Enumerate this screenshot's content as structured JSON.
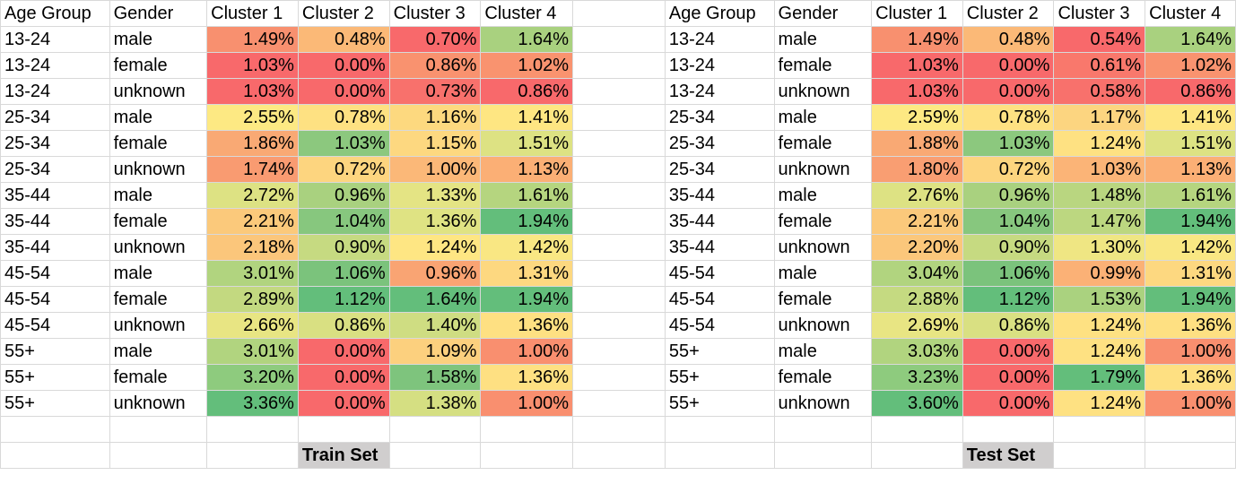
{
  "header": [
    "Age Group",
    "Gender",
    "Cluster 1",
    "Cluster 2",
    "Cluster 3",
    "Cluster 4",
    "",
    "Age Group",
    "Gender",
    "Cluster 1",
    "Cluster 2",
    "Cluster 3",
    "Cluster 4"
  ],
  "rows": [
    [
      {
        "t": "13-24"
      },
      {
        "t": "male"
      },
      {
        "t": "1.49%",
        "bg": "#f8906f"
      },
      {
        "t": "0.48%",
        "bg": "#fbb977"
      },
      {
        "t": "0.70%",
        "bg": "#f8696b"
      },
      {
        "t": "1.64%",
        "bg": "#a9d17f"
      },
      {
        "t": ""
      },
      {
        "t": "13-24"
      },
      {
        "t": "male"
      },
      {
        "t": "1.49%",
        "bg": "#f8906f"
      },
      {
        "t": "0.48%",
        "bg": "#fbb977"
      },
      {
        "t": "0.54%",
        "bg": "#f8696b"
      },
      {
        "t": "1.64%",
        "bg": "#a9d17f"
      }
    ],
    [
      {
        "t": "13-24"
      },
      {
        "t": "female"
      },
      {
        "t": "1.03%",
        "bg": "#f8696b"
      },
      {
        "t": "0.00%",
        "bg": "#f8696b"
      },
      {
        "t": "0.86%",
        "bg": "#f9926f"
      },
      {
        "t": "1.02%",
        "bg": "#f9936f"
      },
      {
        "t": ""
      },
      {
        "t": "13-24"
      },
      {
        "t": "female"
      },
      {
        "t": "1.03%",
        "bg": "#f8696b"
      },
      {
        "t": "0.00%",
        "bg": "#f8696b"
      },
      {
        "t": "0.61%",
        "bg": "#f9786c"
      },
      {
        "t": "1.02%",
        "bg": "#f9936f"
      }
    ],
    [
      {
        "t": "13-24"
      },
      {
        "t": "unknown"
      },
      {
        "t": "1.03%",
        "bg": "#f8696b"
      },
      {
        "t": "0.00%",
        "bg": "#f8696b"
      },
      {
        "t": "0.73%",
        "bg": "#f8716c"
      },
      {
        "t": "0.86%",
        "bg": "#f8696b"
      },
      {
        "t": ""
      },
      {
        "t": "13-24"
      },
      {
        "t": "unknown"
      },
      {
        "t": "1.03%",
        "bg": "#f8696b"
      },
      {
        "t": "0.00%",
        "bg": "#f8696b"
      },
      {
        "t": "0.58%",
        "bg": "#f8716c"
      },
      {
        "t": "0.86%",
        "bg": "#f8696b"
      }
    ],
    [
      {
        "t": "25-34"
      },
      {
        "t": "male"
      },
      {
        "t": "2.55%",
        "bg": "#fde983"
      },
      {
        "t": "0.78%",
        "bg": "#fee182"
      },
      {
        "t": "1.16%",
        "bg": "#fdd97f"
      },
      {
        "t": "1.41%",
        "bg": "#fee682"
      },
      {
        "t": ""
      },
      {
        "t": "25-34"
      },
      {
        "t": "male"
      },
      {
        "t": "2.59%",
        "bg": "#fde983"
      },
      {
        "t": "0.78%",
        "bg": "#fee182"
      },
      {
        "t": "1.17%",
        "bg": "#fcd580"
      },
      {
        "t": "1.41%",
        "bg": "#fee682"
      }
    ],
    [
      {
        "t": "25-34"
      },
      {
        "t": "female"
      },
      {
        "t": "1.86%",
        "bg": "#f9a974"
      },
      {
        "t": "1.03%",
        "bg": "#8cc87e"
      },
      {
        "t": "1.15%",
        "bg": "#fdd880"
      },
      {
        "t": "1.51%",
        "bg": "#dde283"
      },
      {
        "t": ""
      },
      {
        "t": "25-34"
      },
      {
        "t": "female"
      },
      {
        "t": "1.88%",
        "bg": "#f9a974"
      },
      {
        "t": "1.03%",
        "bg": "#8cc87e"
      },
      {
        "t": "1.24%",
        "bg": "#fee182"
      },
      {
        "t": "1.51%",
        "bg": "#dde283"
      }
    ],
    [
      {
        "t": "25-34"
      },
      {
        "t": "unknown"
      },
      {
        "t": "1.74%",
        "bg": "#f99b71"
      },
      {
        "t": "0.72%",
        "bg": "#fdd57f"
      },
      {
        "t": "1.00%",
        "bg": "#fbb878"
      },
      {
        "t": "1.13%",
        "bg": "#fbaf75"
      },
      {
        "t": ""
      },
      {
        "t": "25-34"
      },
      {
        "t": "unknown"
      },
      {
        "t": "1.80%",
        "bg": "#f99e72"
      },
      {
        "t": "0.72%",
        "bg": "#fdd57f"
      },
      {
        "t": "1.03%",
        "bg": "#fbb477"
      },
      {
        "t": "1.13%",
        "bg": "#fbaf75"
      }
    ],
    [
      {
        "t": "35-44"
      },
      {
        "t": "male"
      },
      {
        "t": "2.72%",
        "bg": "#dde283"
      },
      {
        "t": "0.96%",
        "bg": "#a9d17f"
      },
      {
        "t": "1.33%",
        "bg": "#e4e484"
      },
      {
        "t": "1.61%",
        "bg": "#b5d57f"
      },
      {
        "t": ""
      },
      {
        "t": "35-44"
      },
      {
        "t": "male"
      },
      {
        "t": "2.76%",
        "bg": "#dde283"
      },
      {
        "t": "0.96%",
        "bg": "#a9d17f"
      },
      {
        "t": "1.48%",
        "bg": "#b9d680"
      },
      {
        "t": "1.61%",
        "bg": "#b5d57f"
      }
    ],
    [
      {
        "t": "35-44"
      },
      {
        "t": "female"
      },
      {
        "t": "2.21%",
        "bg": "#fbc97b"
      },
      {
        "t": "1.04%",
        "bg": "#87c77e"
      },
      {
        "t": "1.36%",
        "bg": "#dfe383"
      },
      {
        "t": "1.94%",
        "bg": "#63be7b"
      },
      {
        "t": ""
      },
      {
        "t": "35-44"
      },
      {
        "t": "female"
      },
      {
        "t": "2.21%",
        "bg": "#fbc97b"
      },
      {
        "t": "1.04%",
        "bg": "#87c77e"
      },
      {
        "t": "1.47%",
        "bg": "#bcd780"
      },
      {
        "t": "1.94%",
        "bg": "#63be7b"
      }
    ],
    [
      {
        "t": "35-44"
      },
      {
        "t": "unknown"
      },
      {
        "t": "2.18%",
        "bg": "#fbc67b"
      },
      {
        "t": "0.90%",
        "bg": "#c6da81"
      },
      {
        "t": "1.24%",
        "bg": "#fee683"
      },
      {
        "t": "1.42%",
        "bg": "#f9e783"
      },
      {
        "t": ""
      },
      {
        "t": "35-44"
      },
      {
        "t": "unknown"
      },
      {
        "t": "2.20%",
        "bg": "#fbc77b"
      },
      {
        "t": "0.90%",
        "bg": "#c6da81"
      },
      {
        "t": "1.30%",
        "bg": "#efe683"
      },
      {
        "t": "1.42%",
        "bg": "#f9e783"
      }
    ],
    [
      {
        "t": "45-54"
      },
      {
        "t": "male"
      },
      {
        "t": "3.01%",
        "bg": "#b1d47f"
      },
      {
        "t": "1.06%",
        "bg": "#7bc37c"
      },
      {
        "t": "0.96%",
        "bg": "#f9a473"
      },
      {
        "t": "1.31%",
        "bg": "#fdd880"
      },
      {
        "t": ""
      },
      {
        "t": "45-54"
      },
      {
        "t": "male"
      },
      {
        "t": "3.04%",
        "bg": "#b1d47f"
      },
      {
        "t": "1.06%",
        "bg": "#7bc37c"
      },
      {
        "t": "0.99%",
        "bg": "#fbb176"
      },
      {
        "t": "1.31%",
        "bg": "#fdd880"
      }
    ],
    [
      {
        "t": "45-54"
      },
      {
        "t": "female"
      },
      {
        "t": "2.89%",
        "bg": "#c3d980"
      },
      {
        "t": "1.12%",
        "bg": "#63be7b"
      },
      {
        "t": "1.64%",
        "bg": "#63be7b"
      },
      {
        "t": "1.94%",
        "bg": "#63be7b"
      },
      {
        "t": ""
      },
      {
        "t": "45-54"
      },
      {
        "t": "female"
      },
      {
        "t": "2.88%",
        "bg": "#c5da81"
      },
      {
        "t": "1.12%",
        "bg": "#63be7b"
      },
      {
        "t": "1.53%",
        "bg": "#aad27f"
      },
      {
        "t": "1.94%",
        "bg": "#63be7b"
      }
    ],
    [
      {
        "t": "45-54"
      },
      {
        "t": "unknown"
      },
      {
        "t": "2.66%",
        "bg": "#e8e583"
      },
      {
        "t": "0.86%",
        "bg": "#d9e082"
      },
      {
        "t": "1.40%",
        "bg": "#cfdd82"
      },
      {
        "t": "1.36%",
        "bg": "#fee082"
      },
      {
        "t": ""
      },
      {
        "t": "45-54"
      },
      {
        "t": "unknown"
      },
      {
        "t": "2.69%",
        "bg": "#e8e583"
      },
      {
        "t": "0.86%",
        "bg": "#d9e082"
      },
      {
        "t": "1.24%",
        "bg": "#fee182"
      },
      {
        "t": "1.36%",
        "bg": "#fee082"
      }
    ],
    [
      {
        "t": "55+"
      },
      {
        "t": "male"
      },
      {
        "t": "3.01%",
        "bg": "#b1d47f"
      },
      {
        "t": "0.00%",
        "bg": "#f8696b"
      },
      {
        "t": "1.09%",
        "bg": "#fcd07e"
      },
      {
        "t": "1.00%",
        "bg": "#f98f6f"
      },
      {
        "t": ""
      },
      {
        "t": "55+"
      },
      {
        "t": "male"
      },
      {
        "t": "3.03%",
        "bg": "#b1d47f"
      },
      {
        "t": "0.00%",
        "bg": "#f8696b"
      },
      {
        "t": "1.24%",
        "bg": "#fee182"
      },
      {
        "t": "1.00%",
        "bg": "#f98f6f"
      }
    ],
    [
      {
        "t": "55+"
      },
      {
        "t": "female"
      },
      {
        "t": "3.20%",
        "bg": "#8ecb7e"
      },
      {
        "t": "0.00%",
        "bg": "#f8696b"
      },
      {
        "t": "1.58%",
        "bg": "#7ec47d"
      },
      {
        "t": "1.36%",
        "bg": "#fee082"
      },
      {
        "t": ""
      },
      {
        "t": "55+"
      },
      {
        "t": "female"
      },
      {
        "t": "3.23%",
        "bg": "#8ecb7e"
      },
      {
        "t": "0.00%",
        "bg": "#f8696b"
      },
      {
        "t": "1.79%",
        "bg": "#63be7b"
      },
      {
        "t": "1.36%",
        "bg": "#fee082"
      }
    ],
    [
      {
        "t": "55+"
      },
      {
        "t": "unknown"
      },
      {
        "t": "3.36%",
        "bg": "#63be7b"
      },
      {
        "t": "0.00%",
        "bg": "#f8696b"
      },
      {
        "t": "1.38%",
        "bg": "#d5df82"
      },
      {
        "t": "1.00%",
        "bg": "#f98f6f"
      },
      {
        "t": ""
      },
      {
        "t": "55+"
      },
      {
        "t": "unknown"
      },
      {
        "t": "3.60%",
        "bg": "#63be7b"
      },
      {
        "t": "0.00%",
        "bg": "#f8696b"
      },
      {
        "t": "1.24%",
        "bg": "#fee182"
      },
      {
        "t": "1.00%",
        "bg": "#f98f6f"
      }
    ]
  ],
  "labels": {
    "train": "Train Set",
    "test": "Test Set"
  }
}
